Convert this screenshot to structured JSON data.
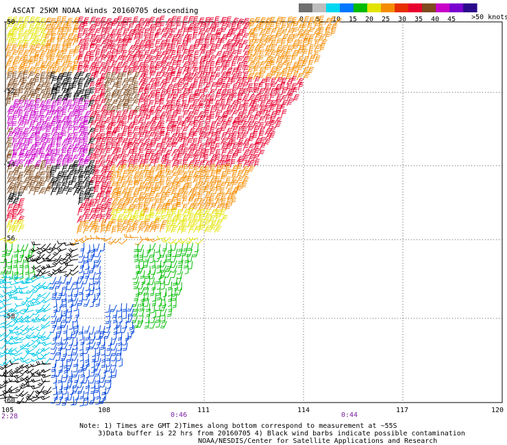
{
  "title": "ASCAT 25KM NOAA Winds 20160705 descending",
  "legend": {
    "units_label": ">50 knots",
    "tick_labels": [
      "0",
      "5",
      "10",
      "15",
      "20",
      "25",
      "30",
      "35",
      "40",
      "45"
    ],
    "colors": [
      "#6f6f6f",
      "#bdbdbd",
      "#00d7f0",
      "#0077ff",
      "#00bb00",
      "#e3e300",
      "#f58c00",
      "#e62e00",
      "#e8002e",
      "#7f4a1e",
      "#c800c8",
      "#7a00d0",
      "#2a0a8a"
    ]
  },
  "lat_labels": [
    "-50",
    "-52",
    "-54",
    "-56",
    "-58",
    "-60"
  ],
  "lon_labels": [
    "105",
    "108",
    "111",
    "114",
    "117",
    "120"
  ],
  "time_labels": [
    "2:28",
    "0:46",
    "0:44"
  ],
  "notes": [
    "Note: 1) Times are GMT 2)Times along bottom correspond to measurement at ~55S",
    "3)Data buffer is 22 hrs from 20160705 4) Black wind barbs indicate possible contamination",
    "NOAA/NESDIS/Center for Satellite Applications and Research"
  ],
  "colors": {
    "grid": "#555555",
    "red_barbs": "#e8002e",
    "orange_barbs": "#f58c00",
    "brown_barbs": "#7f4a1e",
    "magenta_barbs": "#c800c8",
    "blue_barbs": "#0044dd",
    "cyan_barbs": "#00c8e8",
    "green_barbs": "#00bb00",
    "yellow_barbs": "#e3e300",
    "black_barbs": "#000000"
  }
}
